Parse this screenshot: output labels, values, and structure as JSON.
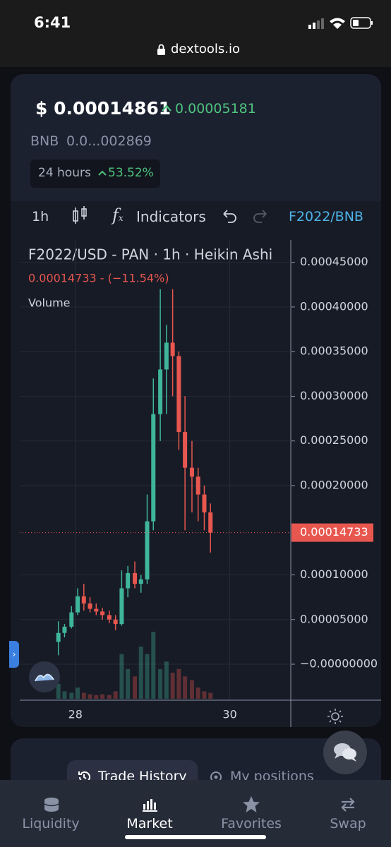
{
  "status_bar": {
    "time": "6:41",
    "url": "dextools.io"
  },
  "header": {
    "price": "$ 0.00014861",
    "change": "0.00005181",
    "bnb_label": "BNB",
    "bnb_value": "0.0...002869",
    "period": "24 hours",
    "period_change": "53.52%"
  },
  "toolbar": {
    "interval": "1h",
    "indicators": "Indicators",
    "pair": "F2022/BNB"
  },
  "chart_data": {
    "type": "candlestick",
    "title": "F2022/USD - PAN · 1h · Heikin Ashi",
    "price_label": "0.00014733 - (−11.54%)",
    "volume_label": "Volume",
    "last_price_label": "0.00014733",
    "x": [
      27.78,
      27.86,
      27.95,
      28.03,
      28.11,
      28.19,
      28.27,
      28.35,
      28.44,
      28.52,
      28.6,
      28.68,
      28.77,
      28.85,
      28.93,
      29.01,
      29.1,
      29.18,
      29.26,
      29.34,
      29.42,
      29.51,
      29.59,
      29.67,
      29.75
    ],
    "open": [
      2.5e-05,
      3.5e-05,
      4.2e-05,
      5.8e-05,
      7.6e-05,
      6.8e-05,
      6.2e-05,
      5.9e-05,
      5.5e-05,
      5e-05,
      4.5e-05,
      8.5e-05,
      0.000102,
      9e-05,
      9.5e-05,
      0.00016,
      0.00028,
      0.00033,
      0.00036,
      0.000345,
      0.00026,
      0.00022,
      0.00021,
      0.00019,
      0.00017
    ],
    "high": [
      4.8e-05,
      4.5e-05,
      6.5e-05,
      8.5e-05,
      9e-05,
      7.5e-05,
      6.8e-05,
      6.3e-05,
      6e-05,
      5.5e-05,
      0.000105,
      0.00011,
      0.000115,
      0.0001,
      0.00019,
      0.00032,
      0.00042,
      0.00038,
      0.00042,
      0.00035,
      0.0003,
      0.00025,
      0.00022,
      0.0002,
      0.00018
    ],
    "low": [
      1e-05,
      3e-05,
      4e-05,
      5.5e-05,
      6e-05,
      5.8e-05,
      5.5e-05,
      5e-05,
      4.6e-05,
      3.8e-05,
      4.3e-05,
      7.5e-05,
      8.5e-05,
      8e-05,
      9e-05,
      0.00015,
      0.00025,
      0.00028,
      0.0003,
      0.00024,
      0.00015,
      0.00017,
      0.00016,
      0.00015,
      0.000125
    ],
    "close": [
      3.5e-05,
      4.2e-05,
      5.8e-05,
      7.6e-05,
      6.8e-05,
      6.2e-05,
      5.9e-05,
      5.5e-05,
      5e-05,
      4.5e-05,
      8.5e-05,
      0.000102,
      9e-05,
      9.5e-05,
      0.00016,
      0.00028,
      0.00033,
      0.00036,
      0.000345,
      0.00026,
      0.00022,
      0.00021,
      0.00019,
      0.00017,
      0.00014733
    ],
    "volume": [
      20,
      10,
      8,
      15,
      8,
      6,
      5,
      6,
      5,
      10,
      60,
      40,
      30,
      70,
      60,
      90,
      40,
      50,
      35,
      40,
      30,
      25,
      15,
      10,
      8
    ],
    "up_color": "#3fb59b",
    "down_color": "#e8574f",
    "xlim": [
      27.28,
      30.79
    ],
    "xticks": [
      28,
      30
    ],
    "ylim": [
      -3.87e-05,
      0.000475
    ],
    "yticks": [
      {
        "value": 0.00045,
        "label": "0.00045000"
      },
      {
        "value": 0.0004,
        "label": "0.00040000"
      },
      {
        "value": 0.00035,
        "label": "0.00035000"
      },
      {
        "value": 0.0003,
        "label": "0.00030000"
      },
      {
        "value": 0.00025,
        "label": "0.00025000"
      },
      {
        "value": 0.0002,
        "label": "0.00020000"
      },
      {
        "value": 0.0001,
        "label": "0.00010000"
      },
      {
        "value": 5e-05,
        "label": "0.00005000"
      },
      {
        "value": 0,
        "label": "−0.00000000"
      }
    ],
    "grid": true
  },
  "tabs": {
    "trade_history": "Trade History",
    "my_positions": "My positions"
  },
  "nav": [
    "Liquidity",
    "Market",
    "Favorites",
    "Swap"
  ]
}
